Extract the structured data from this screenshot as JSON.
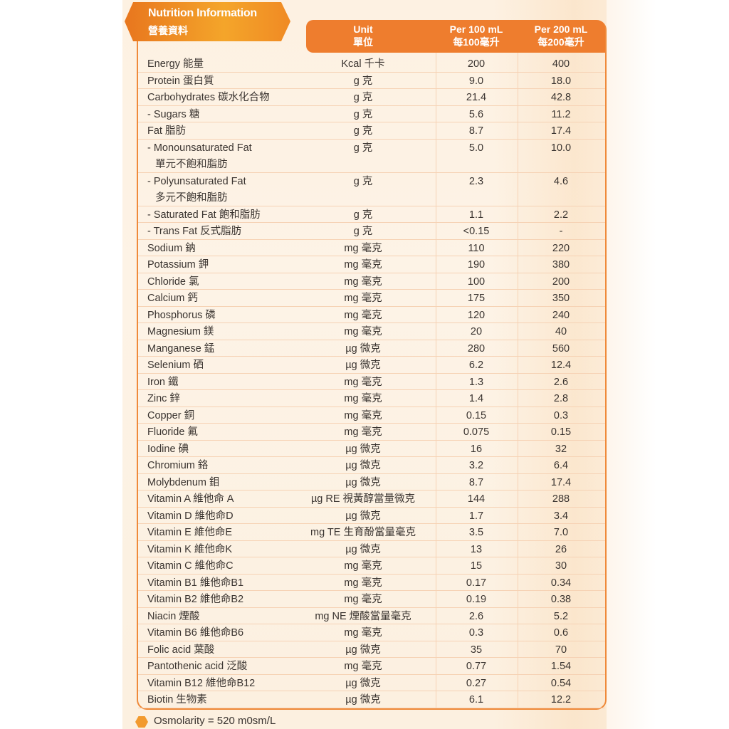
{
  "title": {
    "en": "Nutrition Information",
    "zh": "營養資料"
  },
  "header": {
    "unit": {
      "en": "Unit",
      "zh": "單位"
    },
    "per100": {
      "en": "Per 100 mL",
      "zh": "每100毫升"
    },
    "per200": {
      "en": "Per 200 mL",
      "zh": "每200毫升"
    }
  },
  "accent_color": "#ee7d2e",
  "rows": [
    {
      "name": "Energy 能量",
      "unit": "Kcal 千卡",
      "per100": "200",
      "per200": "400"
    },
    {
      "name": "Protein 蛋白質",
      "unit": "g 克",
      "per100": "9.0",
      "per200": "18.0"
    },
    {
      "name": "Carbohydrates 碳水化合物",
      "unit": "g 克",
      "per100": "21.4",
      "per200": "42.8"
    },
    {
      "name": "- Sugars 糖",
      "unit": "g 克",
      "per100": "5.6",
      "per200": "11.2"
    },
    {
      "name": "Fat 脂肪",
      "unit": "g 克",
      "per100": "8.7",
      "per200": "17.4"
    },
    {
      "name": "- Monounsaturated Fat",
      "name2": "單元不飽和脂肪",
      "unit": "g 克",
      "per100": "5.0",
      "per200": "10.0"
    },
    {
      "name": "- Polyunsaturated Fat",
      "name2": "多元不飽和脂肪",
      "unit": "g 克",
      "per100": "2.3",
      "per200": "4.6"
    },
    {
      "name": "- Saturated Fat 飽和脂肪",
      "unit": "g 克",
      "per100": "1.1",
      "per200": "2.2"
    },
    {
      "name": "- Trans Fat 反式脂肪",
      "unit": "g 克",
      "per100": "<0.15",
      "per200": "-"
    },
    {
      "name": "Sodium 鈉",
      "unit": "mg 毫克",
      "per100": "110",
      "per200": "220"
    },
    {
      "name": "Potassium 鉀",
      "unit": "mg 毫克",
      "per100": "190",
      "per200": "380"
    },
    {
      "name": "Chloride 氯",
      "unit": "mg 毫克",
      "per100": "100",
      "per200": "200"
    },
    {
      "name": "Calcium 鈣",
      "unit": "mg 毫克",
      "per100": "175",
      "per200": "350"
    },
    {
      "name": "Phosphorus 磷",
      "unit": "mg 毫克",
      "per100": "120",
      "per200": "240"
    },
    {
      "name": "Magnesium 鎂",
      "unit": "mg 毫克",
      "per100": "20",
      "per200": "40"
    },
    {
      "name": "Manganese 錳",
      "unit": "µg 微克",
      "per100": "280",
      "per200": "560"
    },
    {
      "name": "Selenium 硒",
      "unit": "µg 微克",
      "per100": "6.2",
      "per200": "12.4"
    },
    {
      "name": "Iron 鐵",
      "unit": "mg 毫克",
      "per100": "1.3",
      "per200": "2.6"
    },
    {
      "name": "Zinc 鋅",
      "unit": "mg 毫克",
      "per100": "1.4",
      "per200": "2.8"
    },
    {
      "name": "Copper 銅",
      "unit": "mg 毫克",
      "per100": "0.15",
      "per200": "0.3"
    },
    {
      "name": "Fluoride 氟",
      "unit": "mg 毫克",
      "per100": "0.075",
      "per200": "0.15"
    },
    {
      "name": "Iodine 碘",
      "unit": "µg 微克",
      "per100": "16",
      "per200": "32"
    },
    {
      "name": "Chromium 鉻",
      "unit": "µg 微克",
      "per100": "3.2",
      "per200": "6.4"
    },
    {
      "name": "Molybdenum 鉬",
      "unit": "µg 微克",
      "per100": "8.7",
      "per200": "17.4"
    },
    {
      "name": "Vitamin A 維他命 A",
      "unit": "µg RE 視黃醇當量微克",
      "per100": "144",
      "per200": "288"
    },
    {
      "name": "Vitamin D 維他命D",
      "unit": "µg 微克",
      "per100": "1.7",
      "per200": "3.4"
    },
    {
      "name": "Vitamin E 維他命E",
      "unit": "mg TE 生育酚當量毫克",
      "per100": "3.5",
      "per200": "7.0"
    },
    {
      "name": "Vitamin K 維他命K",
      "unit": "µg 微克",
      "per100": "13",
      "per200": "26"
    },
    {
      "name": "Vitamin C 維他命C",
      "unit": "mg 毫克",
      "per100": "15",
      "per200": "30"
    },
    {
      "name": "Vitamin B1 維他命B1",
      "unit": "mg 毫克",
      "per100": "0.17",
      "per200": "0.34"
    },
    {
      "name": "Vitamin B2 維他命B2",
      "unit": "mg 毫克",
      "per100": "0.19",
      "per200": "0.38"
    },
    {
      "name": "Niacin 煙酸",
      "unit": "mg NE 煙酸當量毫克",
      "per100": "2.6",
      "per200": "5.2"
    },
    {
      "name": "Vitamin B6 維他命B6",
      "unit": "mg 毫克",
      "per100": "0.3",
      "per200": "0.6"
    },
    {
      "name": "Folic acid 葉酸",
      "unit": "µg 微克",
      "per100": "35",
      "per200": "70"
    },
    {
      "name": "Pantothenic acid 泛酸",
      "unit": "mg 毫克",
      "per100": "0.77",
      "per200": "1.54"
    },
    {
      "name": "Vitamin B12 維他命B12",
      "unit": "µg 微克",
      "per100": "0.27",
      "per200": "0.54"
    },
    {
      "name": "Biotin 生物素",
      "unit": "µg 微克",
      "per100": "6.1",
      "per200": "12.2"
    }
  ],
  "footer": {
    "osmolarity": "Osmolarity = 520 m0sm/L",
    "bullet_icon": "hexagon-bullet-icon"
  }
}
